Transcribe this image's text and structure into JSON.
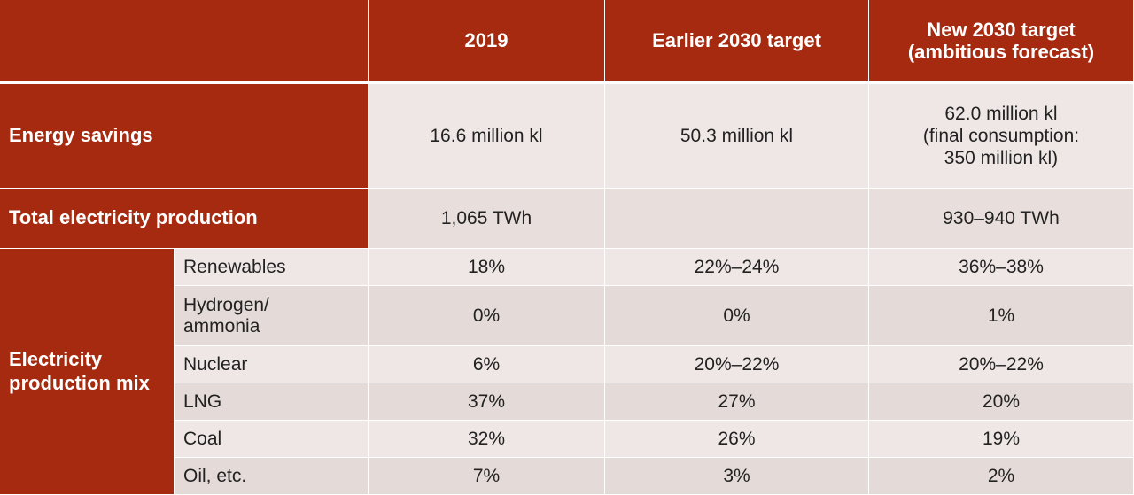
{
  "columns": [
    "",
    "2019",
    "Earlier 2030 target",
    "New 2030 target\n(ambitious forecast)"
  ],
  "rows": {
    "energy_savings": {
      "label": "Energy savings",
      "values": [
        "16.6 million kl",
        "50.3 million kl",
        "62.0 million kl\n(final consumption:\n350 million kl)"
      ]
    },
    "total_electricity": {
      "label": "Total electricity production",
      "values": [
        "1,065 TWh",
        "",
        "930–940 TWh"
      ]
    }
  },
  "mix": {
    "label": "Electricity production mix",
    "items": [
      {
        "label": "Renewables",
        "values": [
          "18%",
          "22%–24%",
          "36%–38%"
        ]
      },
      {
        "label": "Hydrogen/\nammonia",
        "values": [
          "0%",
          "0%",
          "1%"
        ]
      },
      {
        "label": "Nuclear",
        "values": [
          "6%",
          "20%–22%",
          "20%–22%"
        ]
      },
      {
        "label": "LNG",
        "values": [
          "37%",
          "27%",
          "20%"
        ]
      },
      {
        "label": "Coal",
        "values": [
          "32%",
          "26%",
          "19%"
        ]
      },
      {
        "label": "Oil, etc.",
        "values": [
          "7%",
          "3%",
          "2%"
        ]
      }
    ]
  },
  "colors": {
    "header_bg": "#a52a0f",
    "cell_light": "#efe7e5",
    "cell_dark": "#e4dad7",
    "text": "#222222"
  }
}
